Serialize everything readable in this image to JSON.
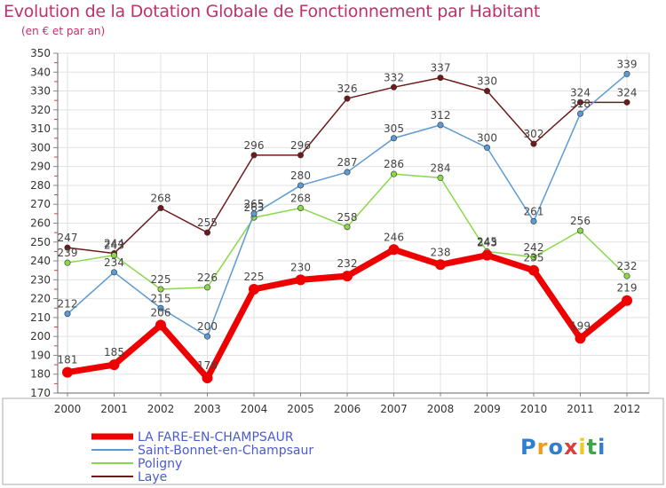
{
  "header": {
    "title": "Evolution de la Dotation Globale de Fonctionnement par Habitant",
    "subtitle": "(en € et par an)"
  },
  "logo": {
    "text": "Proxiti",
    "colors": [
      "#2e7fd0",
      "#f29a1c",
      "#2e7fd0",
      "#e03c3c",
      "#f2c81c",
      "#3aa845",
      "#2e7fd0"
    ]
  },
  "chart_data": {
    "type": "line",
    "x": [
      "2000",
      "2001",
      "2002",
      "2003",
      "2004",
      "2005",
      "2006",
      "2007",
      "2008",
      "2009",
      "2010",
      "2011",
      "2012"
    ],
    "ylim": [
      170,
      350
    ],
    "ytick_step": 10,
    "grid": true,
    "legend_position": "bottom-left",
    "series": [
      {
        "name": "Laye",
        "color": "#6e1a1a",
        "values": [
          247,
          244,
          268,
          255,
          296,
          296,
          326,
          332,
          337,
          330,
          302,
          324,
          324
        ]
      },
      {
        "name": "Poligny",
        "color": "#8ad84a",
        "values": [
          239,
          243,
          225,
          226,
          263,
          268,
          258,
          286,
          284,
          245,
          242,
          256,
          232
        ]
      },
      {
        "name": "Saint-Bonnet-en-Champsaur",
        "color": "#5c9ad6",
        "values": [
          212,
          234,
          215,
          200,
          265,
          280,
          287,
          305,
          312,
          300,
          261,
          318,
          339
        ]
      },
      {
        "name": "LA FARE-EN-CHAMPSAUR",
        "color": "#ee0000",
        "values": [
          181,
          185,
          206,
          178,
          225,
          230,
          232,
          246,
          238,
          243,
          235,
          199,
          219
        ]
      }
    ],
    "legend_order": [
      "LA FARE-EN-CHAMPSAUR",
      "Saint-Bonnet-en-Champsaur",
      "Poligny",
      "Laye"
    ]
  }
}
